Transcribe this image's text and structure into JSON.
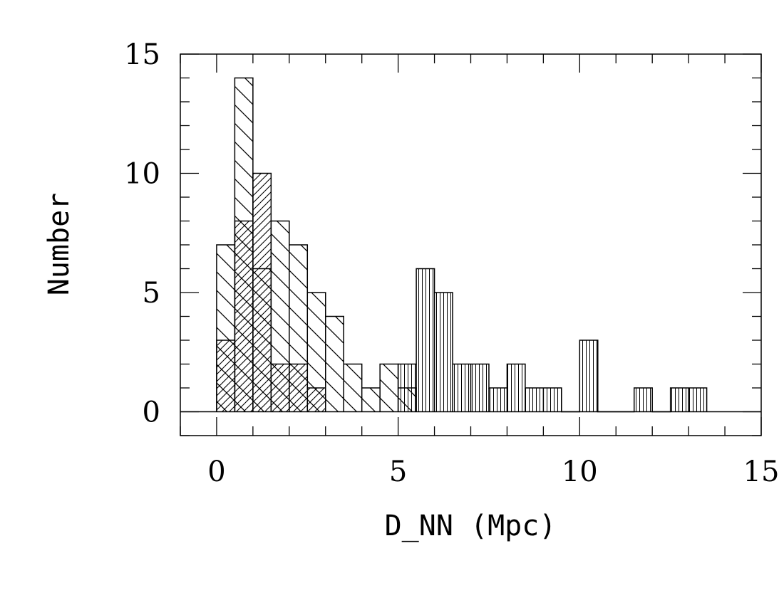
{
  "chart_data": {
    "type": "bar",
    "subtype": "overlaid-step-histogram",
    "title": "",
    "xlabel": "D_NN (Mpc)",
    "ylabel": "Number",
    "xlim": [
      -1,
      15
    ],
    "ylim": [
      -1,
      15
    ],
    "xticks": [
      0,
      5,
      10,
      15
    ],
    "yticks": [
      0,
      5,
      10,
      15
    ],
    "xtick_labels": [
      "0",
      "5",
      "10",
      "15"
    ],
    "ytick_labels": [
      "0",
      "5",
      "10",
      "15"
    ],
    "bin_width": 0.5,
    "grid": false,
    "legend": "none",
    "series": [
      {
        "pattern": "diagonal-backslash",
        "bins": [
          {
            "x0": 0.0,
            "x1": 0.5,
            "count": 7
          },
          {
            "x0": 0.5,
            "x1": 1.0,
            "count": 14
          },
          {
            "x0": 1.0,
            "x1": 1.5,
            "count": 6
          },
          {
            "x0": 1.5,
            "x1": 2.0,
            "count": 8
          },
          {
            "x0": 2.0,
            "x1": 2.5,
            "count": 7
          },
          {
            "x0": 2.5,
            "x1": 3.0,
            "count": 5
          },
          {
            "x0": 3.0,
            "x1": 3.5,
            "count": 4
          },
          {
            "x0": 3.5,
            "x1": 4.0,
            "count": 2
          },
          {
            "x0": 4.0,
            "x1": 4.5,
            "count": 1
          },
          {
            "x0": 4.5,
            "x1": 5.0,
            "count": 2
          },
          {
            "x0": 5.0,
            "x1": 5.5,
            "count": 1
          }
        ]
      },
      {
        "pattern": "diagonal-slash",
        "bins": [
          {
            "x0": 0.0,
            "x1": 0.5,
            "count": 3
          },
          {
            "x0": 0.5,
            "x1": 1.0,
            "count": 8
          },
          {
            "x0": 1.0,
            "x1": 1.5,
            "count": 10
          },
          {
            "x0": 1.5,
            "x1": 2.0,
            "count": 2
          },
          {
            "x0": 2.0,
            "x1": 2.5,
            "count": 2
          },
          {
            "x0": 2.5,
            "x1": 3.0,
            "count": 1
          }
        ]
      },
      {
        "pattern": "vertical",
        "bins": [
          {
            "x0": 5.0,
            "x1": 5.5,
            "count": 2
          },
          {
            "x0": 5.5,
            "x1": 6.0,
            "count": 6
          },
          {
            "x0": 6.0,
            "x1": 6.5,
            "count": 5
          },
          {
            "x0": 6.5,
            "x1": 7.0,
            "count": 2
          },
          {
            "x0": 7.0,
            "x1": 7.5,
            "count": 2
          },
          {
            "x0": 7.5,
            "x1": 8.0,
            "count": 1
          },
          {
            "x0": 8.0,
            "x1": 8.5,
            "count": 2
          },
          {
            "x0": 8.5,
            "x1": 9.0,
            "count": 1
          },
          {
            "x0": 9.0,
            "x1": 9.5,
            "count": 1
          },
          {
            "x0": 9.5,
            "x1": 10.0,
            "count": 0
          },
          {
            "x0": 10.0,
            "x1": 10.5,
            "count": 3
          },
          {
            "x0": 10.5,
            "x1": 11.0,
            "count": 0
          },
          {
            "x0": 11.0,
            "x1": 11.5,
            "count": 0
          },
          {
            "x0": 11.5,
            "x1": 12.0,
            "count": 1
          },
          {
            "x0": 12.0,
            "x1": 12.5,
            "count": 0
          },
          {
            "x0": 12.5,
            "x1": 13.0,
            "count": 1
          },
          {
            "x0": 13.0,
            "x1": 13.5,
            "count": 1
          }
        ]
      }
    ]
  }
}
